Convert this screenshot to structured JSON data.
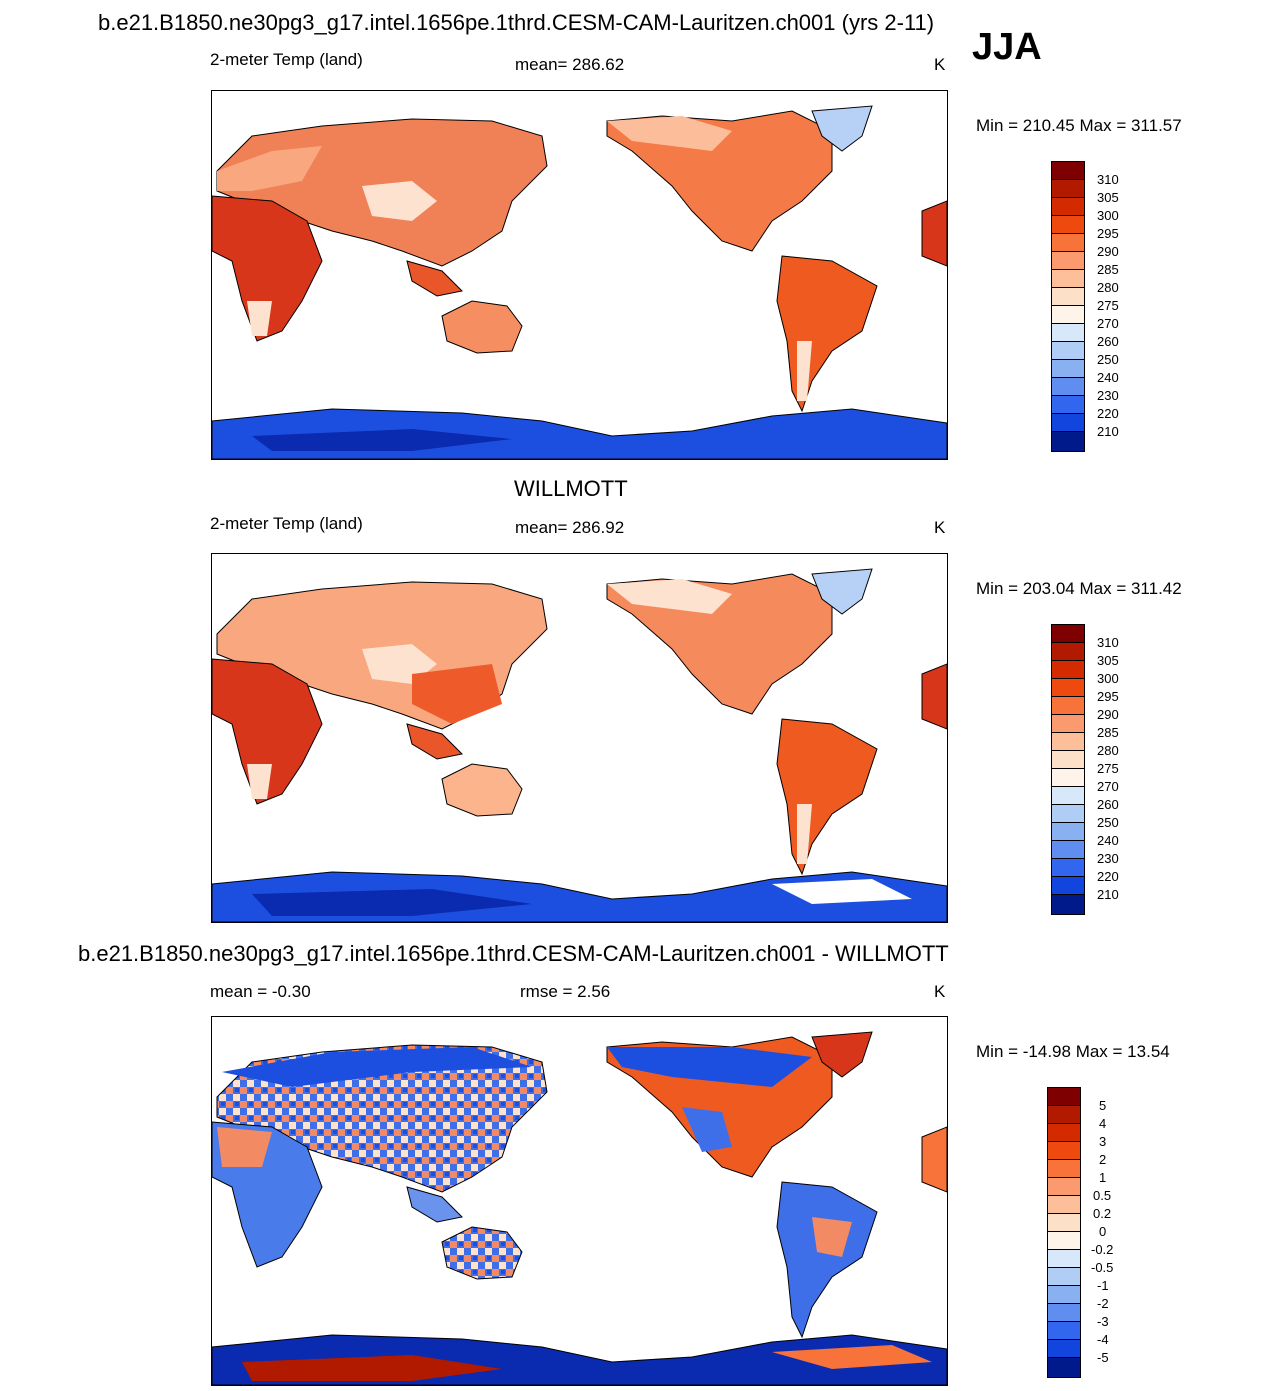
{
  "title_model": "b.e21.B1850.ne30pg3_g17.intel.1656pe.1thrd.CESM-CAM-Lauritzen.ch001 (yrs 2-11)",
  "season": "JJA",
  "panels": [
    {
      "variable": "2-meter Temp (land)",
      "stat": "mean= 286.62",
      "units": "K",
      "minmax": "Min = 210.45 Max = 311.57"
    },
    {
      "heading": "WILLMOTT",
      "variable": "2-meter Temp (land)",
      "stat": "mean= 286.92",
      "units": "K",
      "minmax": "Min = 203.04 Max = 311.42"
    },
    {
      "heading": "b.e21.B1850.ne30pg3_g17.intel.1656pe.1thrd.CESM-CAM-Lauritzen.ch001 - WILLMOTT",
      "stat_mean": "mean =  -0.30",
      "stat_rmse": "rmse =   2.56",
      "units": "K",
      "minmax": "Min = -14.98 Max =  13.54"
    }
  ],
  "temp_levels": [
    "310",
    "305",
    "300",
    "295",
    "290",
    "285",
    "280",
    "275",
    "270",
    "260",
    "250",
    "240",
    "230",
    "220",
    "210"
  ],
  "diff_levels": [
    "5",
    "4",
    "3",
    "2",
    "1",
    "0.5",
    "0.2",
    "0",
    "-0.2",
    "-0.5",
    "-1",
    "-2",
    "-3",
    "-4",
    "-5"
  ],
  "colors": {
    "scale": [
      "#7f0000",
      "#b21a00",
      "#d42a00",
      "#ee4a10",
      "#f7733a",
      "#fb9a6e",
      "#fdbf9a",
      "#fde0c8",
      "#fff4ea",
      "#d8e8fb",
      "#b0cdf6",
      "#89b0f0",
      "#5f8df0",
      "#3366ee",
      "#1245dd",
      "#0028b4",
      "#001a8c"
    ],
    "land_warm": "#ef5a2a",
    "land_hot": "#d8361a",
    "land_mild": "#f9a77e",
    "land_cool": "#fde2cf",
    "ice_blue": "#1c4fe0",
    "ice_deep": "#0a2ab0",
    "ice_light": "#b7d0f5"
  }
}
